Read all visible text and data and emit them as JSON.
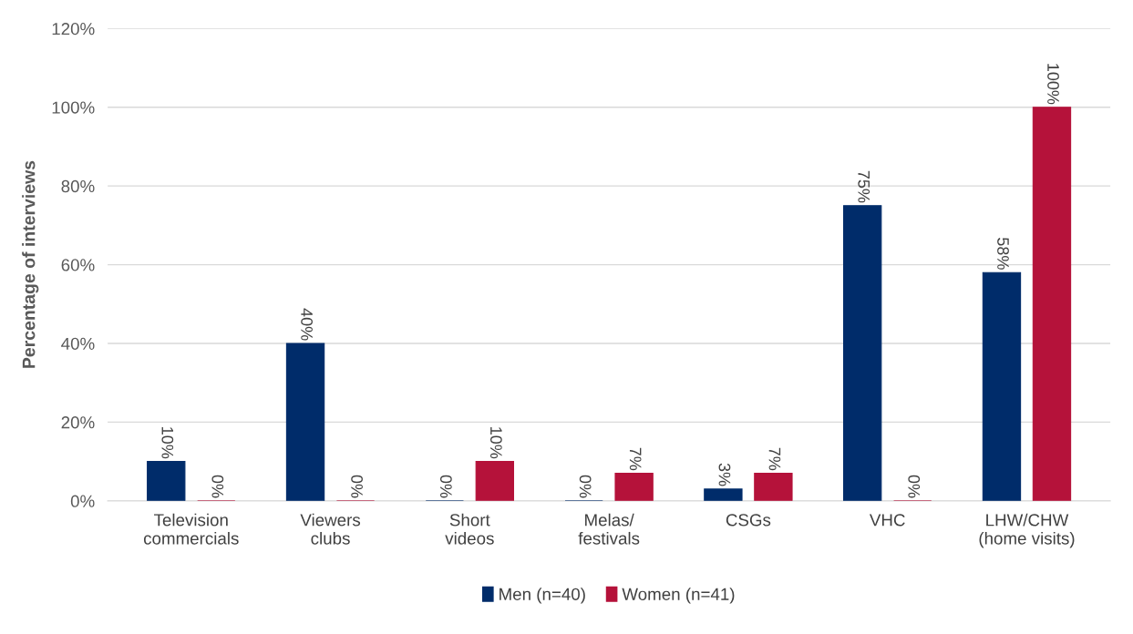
{
  "chart_data": {
    "type": "bar",
    "ylabel": "Percentage of interviews",
    "categories": [
      "Television\ncommercials",
      "Viewers\nclubs",
      "Short\nvideos",
      "Melas/\nfestivals",
      "CSGs",
      "VHC",
      "LHW/CHW\n(home visits)"
    ],
    "series": [
      {
        "name": "Men (n=40)",
        "color": "#002c6a",
        "values": [
          10,
          40,
          0,
          0,
          3,
          75,
          58
        ],
        "value_labels": [
          "10%",
          "40%",
          "0%",
          "0%",
          "3%",
          "75%",
          "58%"
        ]
      },
      {
        "name": "Women (n=41)",
        "color": "#b5123a",
        "values": [
          0,
          0,
          10,
          7,
          7,
          0,
          100
        ],
        "value_labels": [
          "0%",
          "0%",
          "10%",
          "7%",
          "7%",
          "0%",
          "100%"
        ]
      }
    ],
    "ylim": [
      0,
      120
    ],
    "yticks": [
      {
        "value": 0,
        "label": "0%"
      },
      {
        "value": 20,
        "label": "20%"
      },
      {
        "value": 40,
        "label": "40%"
      },
      {
        "value": 60,
        "label": "60%"
      },
      {
        "value": 80,
        "label": "80%"
      },
      {
        "value": 100,
        "label": "100%"
      },
      {
        "value": 120,
        "label": "120%"
      }
    ],
    "grid": "y",
    "legend": "bottom"
  }
}
